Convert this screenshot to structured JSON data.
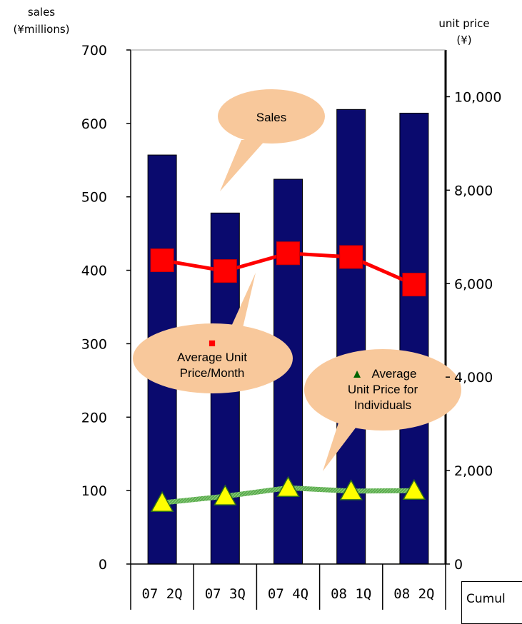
{
  "chart_data": {
    "type": "bar",
    "categories": [
      "07 2Q",
      "07 3Q",
      "07 4Q",
      "08 1Q",
      "08 2Q"
    ],
    "series": [
      {
        "name": "Sales",
        "type": "bar",
        "axis": "left",
        "color": "#0a0a6e",
        "values": [
          557,
          478,
          524,
          619,
          614
        ]
      },
      {
        "name": "Average Unit Price/Month",
        "type": "line",
        "axis": "right",
        "color": "#ff0000",
        "values": [
          6500,
          6270,
          6650,
          6570,
          5980
        ]
      },
      {
        "name": "Average Unit Price for Individuals",
        "type": "line",
        "axis": "right",
        "color": "#ffff00",
        "line_color": "#5aaa4e",
        "values": [
          1310,
          1450,
          1630,
          1560,
          1570
        ]
      }
    ],
    "left_axis": {
      "label_lines": [
        "sales",
        "(¥millions)"
      ],
      "ticks": [
        "700",
        "600",
        "500",
        "400",
        "300",
        "200",
        "100",
        "0"
      ],
      "ylim": [
        0,
        700
      ]
    },
    "right_axis": {
      "label_lines": [
        "unit price",
        "(¥)"
      ],
      "ticks": [
        "10,000",
        "8,000",
        "6,000",
        "4,000",
        "2,000",
        "0"
      ],
      "ylim": [
        0,
        11000
      ]
    },
    "callouts": {
      "sales": "Sales",
      "monthly_lines": [
        "Average Unit",
        "Price/Month"
      ],
      "individual_lines": [
        "Average",
        "Unit Price for",
        "Individuals"
      ],
      "monthly_marker": "■",
      "individual_marker": "▲"
    },
    "grid": false
  },
  "footer": {
    "cumulative_label": "Cumul"
  }
}
